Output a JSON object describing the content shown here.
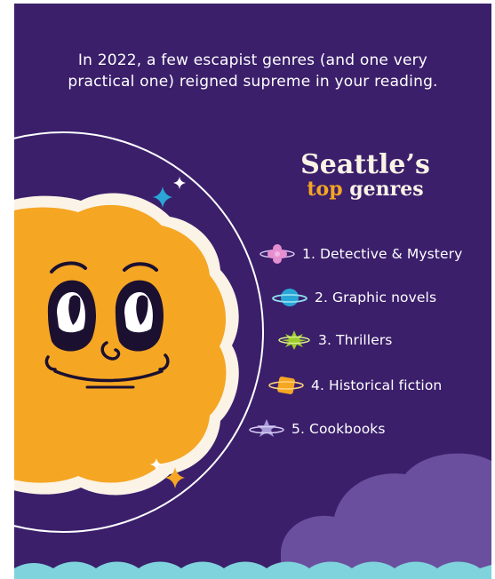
{
  "intro": {
    "line1": "In 2022, a few escapist genres (and one very",
    "line2": "practical one) reigned supreme in your reading."
  },
  "title": {
    "line1": "Seattle’s",
    "highlight": "top",
    "rest": "genres"
  },
  "genres": [
    {
      "label": "1. Detective & Mystery",
      "icon": "pink-flower-planet-icon",
      "color": "#e58fd0"
    },
    {
      "label": "2. Graphic novels",
      "icon": "blue-ringed-planet-icon",
      "color": "#2aa6d6"
    },
    {
      "label": "3. Thrillers",
      "icon": "green-spiky-planet-icon",
      "color": "#9ccc2e"
    },
    {
      "label": "4. Historical fiction",
      "icon": "orange-square-planet-icon",
      "color": "#f5a623"
    },
    {
      "label": "5. Cookbooks",
      "icon": "lavender-star-planet-icon",
      "color": "#a99ad8"
    }
  ],
  "colors": {
    "background": "#3b1f6b",
    "sun": "#f5a623",
    "cloud_blue": "#7fd3dc",
    "cloud_purple": "#6a4f9e"
  }
}
